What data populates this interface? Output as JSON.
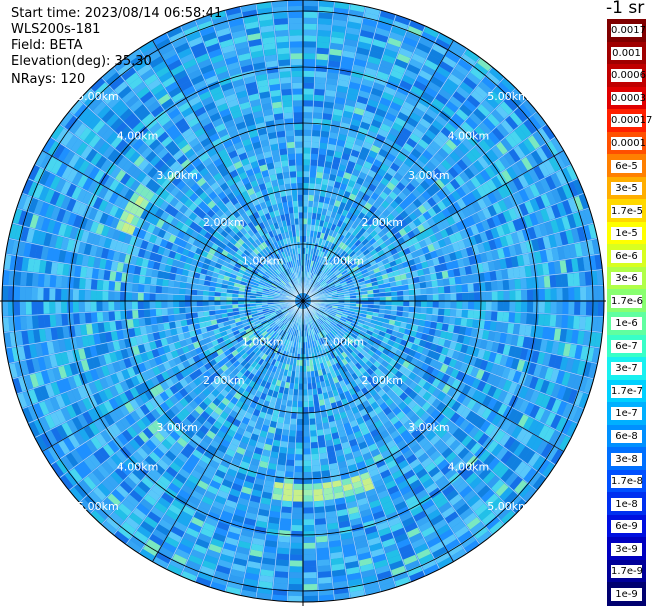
{
  "header": {
    "start_time": "Start time: 2023/08/14 06:58:41",
    "instrument": "WLS200s-181",
    "field": "Field: BETA",
    "elevation": "Elevation(deg): 35.30",
    "nrays": "NRays: 120"
  },
  "colorbar": {
    "unit": "-1 sr",
    "labels": [
      "0.0017",
      "0.001",
      "0.0006",
      "0.0003",
      "0.00017",
      "0.0001",
      "6e-5",
      "3e-5",
      "1.7e-5",
      "1e-5",
      "6e-6",
      "3e-6",
      "1.7e-6",
      "1e-6",
      "6e-7",
      "3e-7",
      "1.7e-7",
      "1e-7",
      "6e-8",
      "3e-8",
      "1.7e-8",
      "1e-8",
      "6e-9",
      "3e-9",
      "1.7e-9",
      "1e-9"
    ],
    "colors": [
      "#800000",
      "#a00000",
      "#c00000",
      "#e00000",
      "#ff2000",
      "#ff5000",
      "#ff8000",
      "#ffae00",
      "#ffd800",
      "#ffff00",
      "#d8ff20",
      "#b0ff48",
      "#88ff70",
      "#60ffa0",
      "#38ffc8",
      "#18f0f0",
      "#00d0ff",
      "#00b0ff",
      "#0090ff",
      "#0070ff",
      "#0050ff",
      "#0030f0",
      "#0010e0",
      "#0000c0",
      "#000098",
      "#000070"
    ]
  },
  "ppi": {
    "ring_labels": [
      "1.00km",
      "2.00km",
      "3.00km",
      "4.00km",
      "5.00km"
    ],
    "palette": [
      "#1570e8",
      "#1e90ff",
      "#2f9df2",
      "#35a5f5",
      "#3fb0f8",
      "#1aa8f0",
      "#5ac8fa",
      "#22c0e8",
      "#48d6f0",
      "#1080e0"
    ],
    "highlight_colors": [
      "#7ae8c0",
      "#9ff0b0",
      "#c8f08a"
    ]
  }
}
